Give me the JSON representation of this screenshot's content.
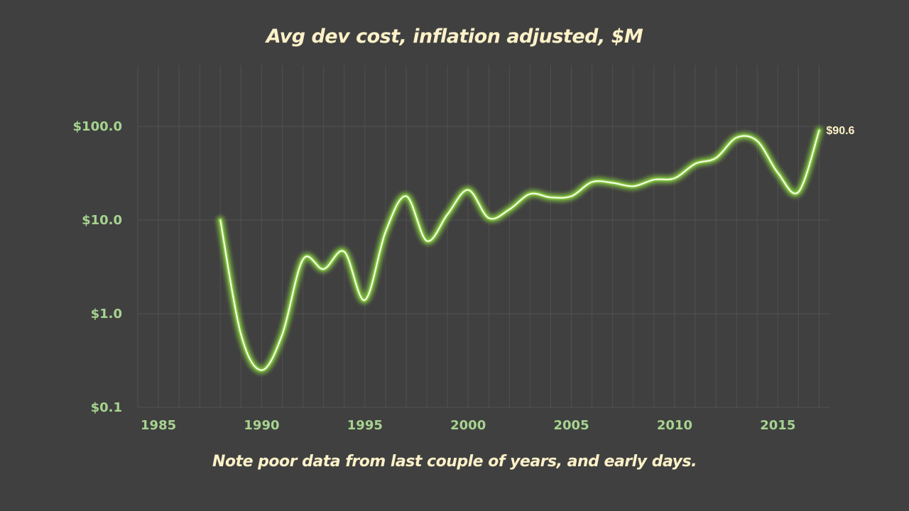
{
  "chart_data": {
    "type": "line",
    "title": "Avg dev cost, inflation adjusted, $M",
    "note": "Note poor data from last couple of years, and early days.",
    "xlabel": "",
    "ylabel": "",
    "y_scale": "log",
    "xlim": [
      1984,
      2017.5
    ],
    "ylim": [
      0.1,
      450
    ],
    "grid": true,
    "x_ticks": [
      1985,
      1990,
      1995,
      2000,
      2005,
      2010,
      2015
    ],
    "x_tick_labels": [
      "1985",
      "1990",
      "1995",
      "2000",
      "2005",
      "2010",
      "2015"
    ],
    "y_ticks": [
      0.1,
      1,
      10,
      100
    ],
    "y_tick_labels": [
      "$0.1",
      "$1.0",
      "$10.0",
      "$100.0"
    ],
    "series": [
      {
        "name": "Avg dev cost",
        "x": [
          1988,
          1989,
          1990,
          1991,
          1992,
          1993,
          1994,
          1995,
          1996,
          1997,
          1998,
          1999,
          2000,
          2001,
          2002,
          2003,
          2004,
          2005,
          2006,
          2007,
          2008,
          2009,
          2010,
          2011,
          2012,
          2013,
          2014,
          2015,
          2016,
          2017
        ],
        "values": [
          10,
          0.6,
          0.25,
          0.6,
          3.8,
          3,
          4.6,
          1.4,
          7.5,
          18,
          6,
          11.5,
          21,
          10.5,
          13,
          19,
          17.5,
          18,
          25.5,
          25,
          23,
          27,
          28,
          40,
          46,
          76,
          70,
          32,
          20,
          90.6
        ]
      }
    ],
    "end_label": "$90.6",
    "colors": {
      "background": "#404040",
      "line": "#f7ffe4",
      "glow": "#7fbf3f",
      "grid": "#555555",
      "tick_label": "#a6d38f",
      "title": "#fdf1c8",
      "end_label": "#fdf1c8"
    }
  }
}
